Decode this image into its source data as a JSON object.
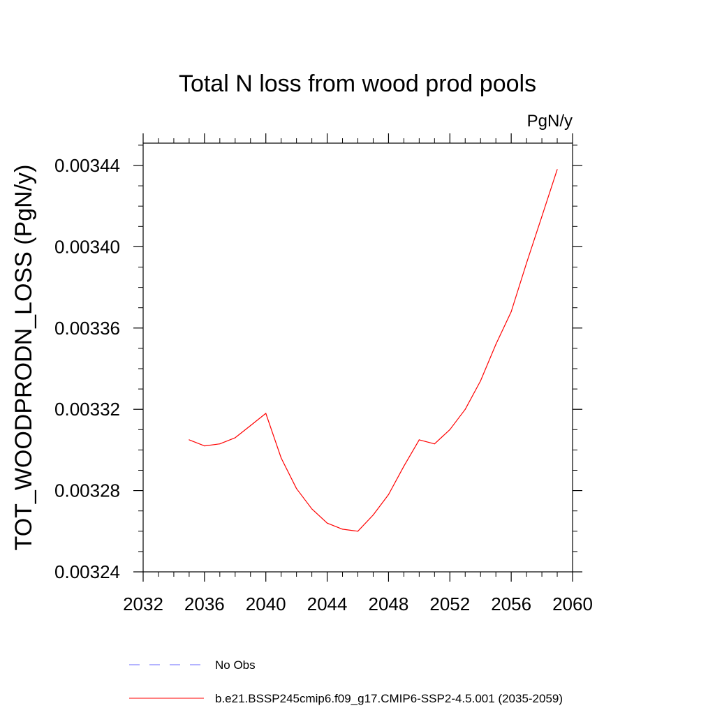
{
  "chart_data": {
    "type": "line",
    "title": "Total N loss from wood prod pools",
    "units_label": "PgN/y",
    "ylabel": "TOT_WOODPRODN_LOSS  (PgN/y)",
    "xlabel": "",
    "xlim": [
      2032,
      2060
    ],
    "ylim": [
      0.00324,
      0.003451
    ],
    "x_ticks": [
      2032,
      2036,
      2040,
      2044,
      2048,
      2052,
      2056,
      2060
    ],
    "x_tick_labels": [
      "2032",
      "2036",
      "2040",
      "2044",
      "2048",
      "2052",
      "2056",
      "2060"
    ],
    "y_ticks": [
      0.00324,
      0.00328,
      0.00332,
      0.00336,
      0.0034,
      0.00344
    ],
    "y_tick_labels": [
      "0.00324",
      "0.00328",
      "0.00332",
      "0.00336",
      "0.00340",
      "0.00344"
    ],
    "grid": false,
    "legend_position": "bottom",
    "series": [
      {
        "name": "b.e21.BSSP245cmip6.f09_g17.CMIP6-SSP2-4.5.001 (2035-2059)",
        "color": "#ff0000",
        "dash": "solid",
        "x": [
          2035,
          2036,
          2037,
          2038,
          2039,
          2040,
          2041,
          2042,
          2043,
          2044,
          2045,
          2046,
          2047,
          2048,
          2049,
          2050,
          2051,
          2052,
          2053,
          2054,
          2055,
          2056,
          2057,
          2058,
          2059
        ],
        "y": [
          0.003305,
          0.003302,
          0.003303,
          0.003306,
          0.003312,
          0.003318,
          0.003296,
          0.003281,
          0.003271,
          0.003264,
          0.003261,
          0.00326,
          0.003268,
          0.003278,
          0.003292,
          0.003305,
          0.003303,
          0.00331,
          0.00332,
          0.003334,
          0.003352,
          0.003368,
          0.003392,
          0.003415,
          0.003438
        ]
      }
    ],
    "legend": [
      {
        "label": "No Obs",
        "color": "#6a6aff",
        "dash": "dashed"
      },
      {
        "label": "b.e21.BSSP245cmip6.f09_g17.CMIP6-SSP2-4.5.001 (2035-2059)",
        "color": "#ff0000",
        "dash": "solid"
      }
    ]
  }
}
